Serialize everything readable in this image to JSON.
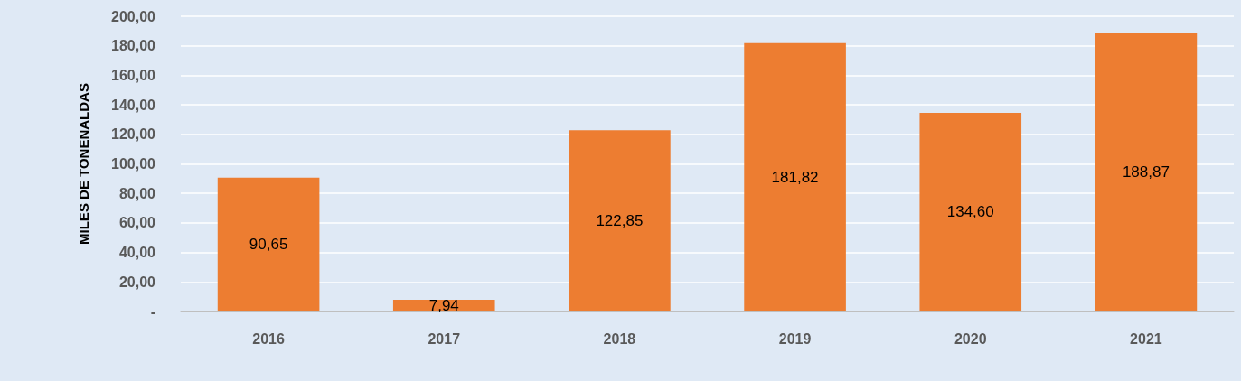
{
  "chart_data": {
    "type": "bar",
    "ylabel": "MILES DE TONENALDAS",
    "categories": [
      "2016",
      "2017",
      "2018",
      "2019",
      "2020",
      "2021"
    ],
    "values": [
      90.65,
      7.94,
      122.85,
      181.82,
      134.6,
      188.87
    ],
    "value_labels": [
      "90,65",
      "7,94",
      "122,85",
      "181,82",
      "134,60",
      "188,87"
    ],
    "color": "#ed7d31",
    "ylim": [
      0,
      200
    ],
    "yticks": [
      {
        "value": 0,
        "label": "-"
      },
      {
        "value": 20,
        "label": "20,00"
      },
      {
        "value": 40,
        "label": "40,00"
      },
      {
        "value": 60,
        "label": "60,00"
      },
      {
        "value": 80,
        "label": "80,00"
      },
      {
        "value": 100,
        "label": "100,00"
      },
      {
        "value": 120,
        "label": "120,00"
      },
      {
        "value": 140,
        "label": "140,00"
      },
      {
        "value": 160,
        "label": "160,00"
      },
      {
        "value": 180,
        "label": "180,00"
      },
      {
        "value": 200,
        "label": "200,00"
      }
    ],
    "grid": "y"
  }
}
